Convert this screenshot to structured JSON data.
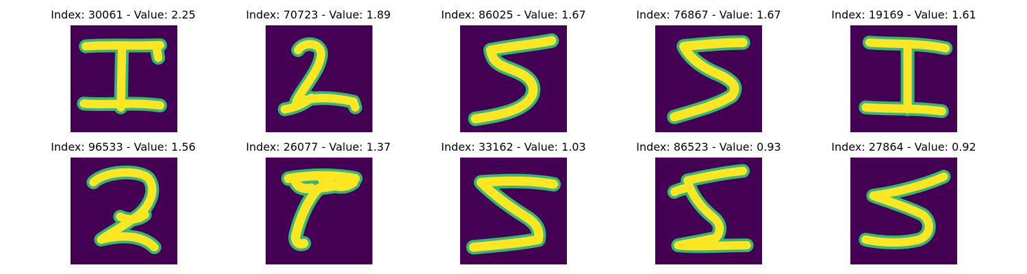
{
  "colors": {
    "background": "#440154",
    "mid_low": "#31688e",
    "mid": "#21918c",
    "mid_high": "#35b779",
    "stroke": "#fde725"
  },
  "panels": [
    {
      "title": "Index: 30061 - Value: 2.25",
      "digit_icon": "digit-I-icon"
    },
    {
      "title": "Index: 70723 - Value: 1.89",
      "digit_icon": "digit-2-icon"
    },
    {
      "title": "Index: 86025 - Value: 1.67",
      "digit_icon": "digit-5-icon"
    },
    {
      "title": "Index: 76867 - Value: 1.67",
      "digit_icon": "digit-5-icon"
    },
    {
      "title": "Index: 19169 - Value: 1.61",
      "digit_icon": "digit-I-icon"
    },
    {
      "title": "Index: 96533 - Value: 1.56",
      "digit_icon": "digit-2-icon"
    },
    {
      "title": "Index: 26077 - Value: 1.37",
      "digit_icon": "digit-7-icon"
    },
    {
      "title": "Index: 33162 - Value: 1.03",
      "digit_icon": "digit-5-icon"
    },
    {
      "title": "Index: 86523 - Value: 0.93",
      "digit_icon": "digit-5-icon"
    },
    {
      "title": "Index: 27864 - Value: 0.92",
      "digit_icon": "digit-5-icon"
    }
  ]
}
